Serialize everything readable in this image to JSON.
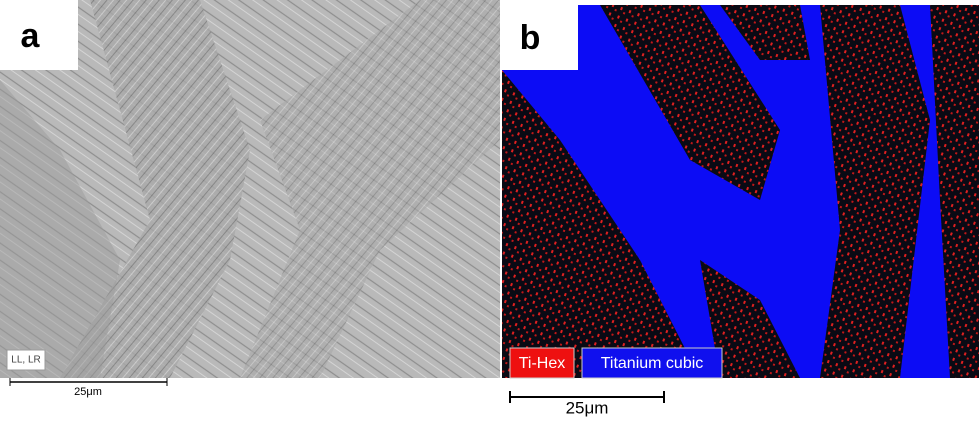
{
  "panels": [
    {
      "label": "a",
      "annotation": "LL, LR",
      "scale_bar": "25μm"
    },
    {
      "label": "b",
      "legend": [
        "Ti-Hex",
        "Titanium cubic"
      ],
      "scale_bar": "25μm"
    }
  ]
}
